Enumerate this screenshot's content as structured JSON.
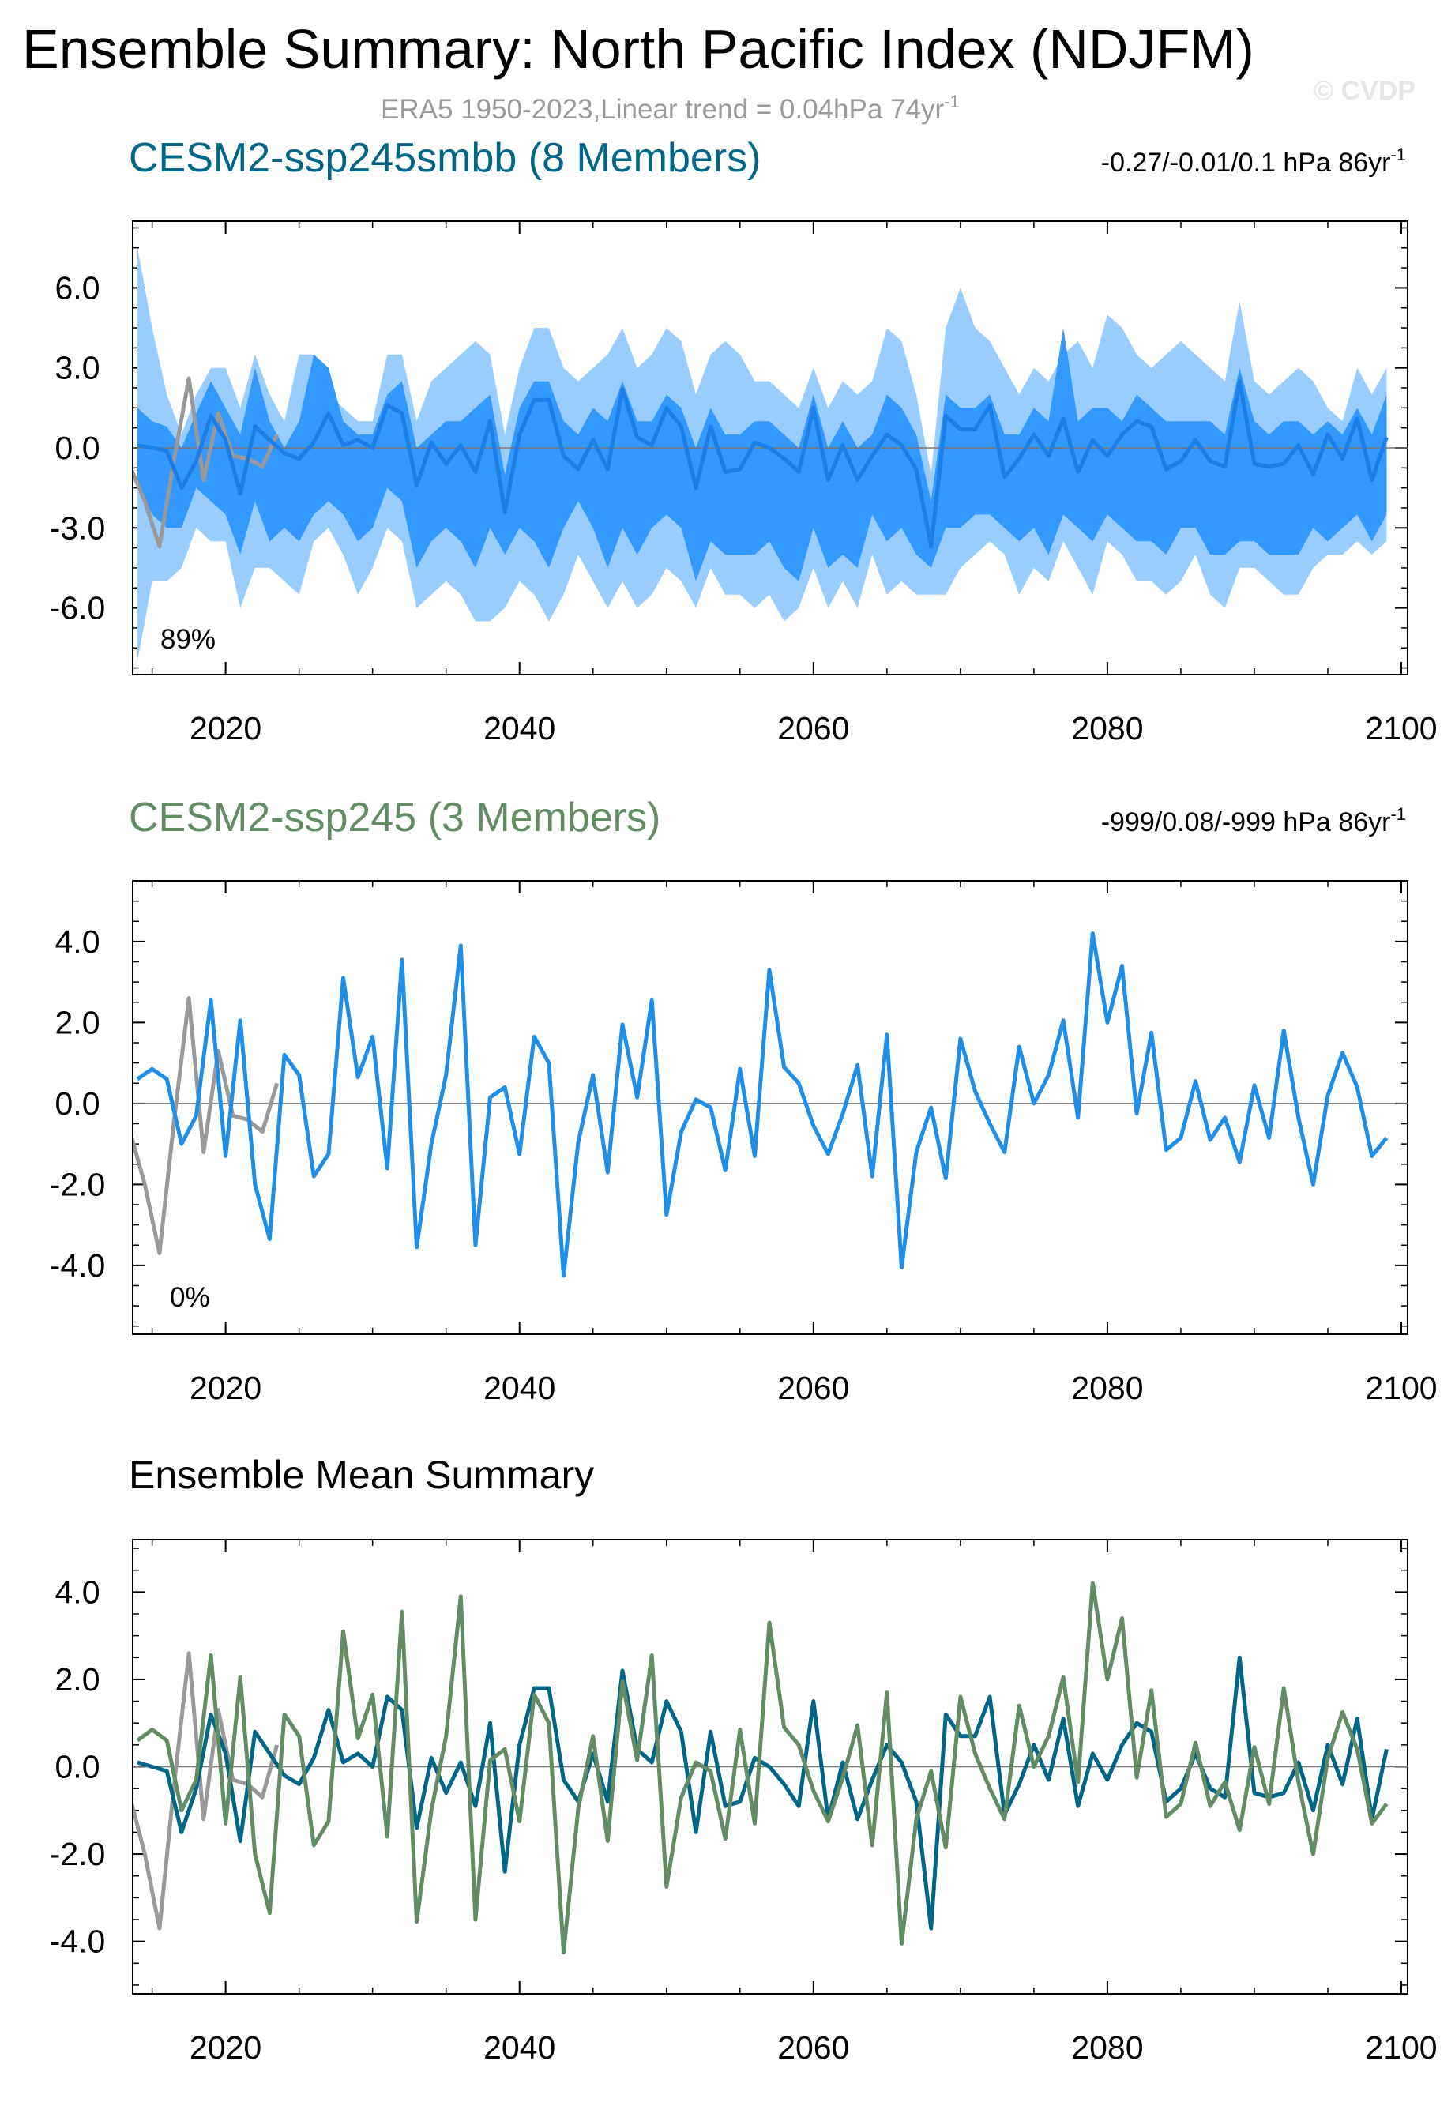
{
  "title": "Ensemble Summary: North Pacific Index (NDJFM)",
  "subtitle": "ERA5 1950-2023,Linear trend = 0.04hPa 74yr",
  "subtitle_sup": "-1",
  "watermark": "© CVDP",
  "colors": {
    "smbb": "#006688",
    "ssp245": "#638c64",
    "obs": "#999999",
    "mean_line": "#1c7ee8",
    "band_outer": "#99ccff",
    "band_inner": "#3399ff",
    "ssp245_line": "#1f8ee8"
  },
  "chart_data": [
    {
      "type": "area",
      "name": "panel-smbb",
      "title": "CESM2-ssp245smbb (8 Members)",
      "trend_text": "-0.27/-0.01/0.1 hPa 86yr",
      "trend_sup": "-1",
      "percent_label": "89%",
      "xlim": [
        2014,
        2100
      ],
      "ylim": [
        -8.5,
        8.5
      ],
      "yticks": [
        6.0,
        3.0,
        0.0,
        -3.0,
        -6.0
      ],
      "ytick_labels": [
        "6.0",
        "3.0",
        "0.0",
        "-3.0",
        "-6.0"
      ],
      "xticks": [
        2020,
        2040,
        2060,
        2080,
        2100
      ],
      "xtick_labels": [
        "2020",
        "2040",
        "2060",
        "2080",
        "2100"
      ],
      "x_start": 2014,
      "ensemble_mean": [
        0.1,
        0.0,
        -0.1,
        -1.5,
        -0.5,
        1.2,
        0.3,
        -1.7,
        0.8,
        0.3,
        -0.2,
        -0.4,
        0.2,
        1.3,
        0.1,
        0.3,
        0.0,
        1.6,
        1.3,
        -1.4,
        0.2,
        -0.6,
        0.1,
        -0.9,
        1.0,
        -2.4,
        0.5,
        1.8,
        1.8,
        -0.3,
        -0.8,
        0.3,
        -0.8,
        2.2,
        0.4,
        0.1,
        1.5,
        0.8,
        -1.5,
        0.8,
        -0.9,
        -0.8,
        0.2,
        0.0,
        -0.4,
        -0.9,
        1.5,
        -1.2,
        0.1,
        -1.2,
        -0.3,
        0.5,
        0.1,
        -0.8,
        -3.7,
        1.2,
        0.7,
        0.7,
        1.6,
        -1.1,
        -0.4,
        0.5,
        -0.3,
        1.1,
        -0.9,
        0.3,
        -0.3,
        0.5,
        1.0,
        0.8,
        -0.8,
        -0.5,
        0.3,
        -0.5,
        -0.7,
        2.5,
        -0.6,
        -0.7,
        -0.6,
        0.1,
        -1.0,
        0.5,
        -0.4,
        1.1,
        -1.2,
        0.4
      ],
      "outer_upper": [
        7.5,
        4.5,
        2.0,
        0.5,
        2.0,
        3.0,
        3.0,
        1.5,
        3.5,
        2.0,
        1.0,
        3.5,
        3.5,
        2.0,
        1.5,
        1.0,
        1.0,
        3.5,
        3.5,
        1.0,
        2.5,
        3.0,
        3.5,
        4.0,
        3.5,
        0.5,
        3.0,
        4.5,
        4.5,
        3.0,
        2.5,
        3.0,
        3.5,
        4.5,
        3.0,
        3.5,
        4.5,
        4.0,
        2.0,
        3.5,
        4.0,
        3.5,
        2.5,
        2.5,
        2.0,
        1.5,
        3.0,
        1.5,
        2.5,
        2.0,
        2.5,
        4.5,
        4.0,
        2.0,
        -1.0,
        4.5,
        6.0,
        4.5,
        4.0,
        3.0,
        2.0,
        3.0,
        2.5,
        3.5,
        4.0,
        3.0,
        5.0,
        4.5,
        3.5,
        3.0,
        3.5,
        4.0,
        3.5,
        3.0,
        2.5,
        5.5,
        2.5,
        2.0,
        2.5,
        3.0,
        2.5,
        1.5,
        1.0,
        3.0,
        2.0,
        3.0
      ],
      "outer_lower": [
        -8.0,
        -5.0,
        -5.0,
        -4.5,
        -3.0,
        -3.5,
        -3.5,
        -6.0,
        -4.5,
        -4.5,
        -5.0,
        -5.5,
        -3.5,
        -3.0,
        -4.0,
        -5.5,
        -4.5,
        -3.0,
        -3.5,
        -6.0,
        -5.5,
        -5.0,
        -5.5,
        -6.5,
        -6.5,
        -6.0,
        -5.0,
        -5.5,
        -6.5,
        -5.5,
        -4.0,
        -5.0,
        -6.0,
        -5.0,
        -6.0,
        -5.5,
        -4.5,
        -5.0,
        -6.0,
        -4.5,
        -5.5,
        -5.5,
        -6.0,
        -5.5,
        -6.5,
        -6.0,
        -4.5,
        -6.0,
        -5.0,
        -6.0,
        -4.0,
        -5.5,
        -5.0,
        -5.5,
        -5.5,
        -5.5,
        -4.5,
        -4.0,
        -3.5,
        -4.0,
        -5.5,
        -4.5,
        -5.0,
        -3.5,
        -4.5,
        -5.5,
        -3.5,
        -4.0,
        -5.0,
        -5.0,
        -5.5,
        -5.0,
        -4.0,
        -5.5,
        -6.0,
        -4.5,
        -4.5,
        -5.0,
        -5.5,
        -5.5,
        -4.5,
        -4.0,
        -4.0,
        -3.5,
        -4.0,
        -3.5
      ],
      "inner_upper": [
        1.5,
        1.0,
        0.8,
        0.0,
        1.3,
        2.5,
        1.5,
        0.5,
        3.0,
        1.0,
        0.0,
        1.0,
        3.5,
        3.0,
        1.0,
        0.5,
        0.5,
        2.0,
        2.5,
        0.0,
        0.5,
        1.0,
        1.0,
        1.5,
        2.0,
        -1.0,
        1.5,
        2.5,
        2.5,
        1.0,
        0.5,
        1.5,
        1.0,
        2.5,
        1.0,
        1.0,
        2.0,
        1.5,
        0.0,
        1.5,
        0.5,
        0.5,
        1.0,
        1.0,
        0.5,
        0.0,
        2.0,
        0.0,
        1.0,
        0.0,
        0.5,
        2.0,
        1.5,
        0.5,
        -2.0,
        2.0,
        1.5,
        1.5,
        2.0,
        0.5,
        0.5,
        1.5,
        1.0,
        4.5,
        1.0,
        1.5,
        1.5,
        1.0,
        2.0,
        1.5,
        1.0,
        1.0,
        1.0,
        1.0,
        0.5,
        3.0,
        1.0,
        0.5,
        1.0,
        1.0,
        0.5,
        1.0,
        0.5,
        1.5,
        0.5,
        2.0
      ],
      "inner_lower": [
        -1.5,
        -2.5,
        -3.0,
        -3.0,
        -1.5,
        -2.0,
        -2.5,
        -4.0,
        -2.0,
        -3.5,
        -3.0,
        -3.5,
        -2.5,
        -2.0,
        -2.5,
        -3.5,
        -3.0,
        -1.5,
        -2.0,
        -4.5,
        -3.5,
        -3.0,
        -3.5,
        -4.5,
        -3.0,
        -4.0,
        -3.0,
        -3.5,
        -4.5,
        -3.0,
        -2.0,
        -3.0,
        -4.5,
        -3.0,
        -4.0,
        -3.0,
        -2.5,
        -3.0,
        -5.0,
        -3.5,
        -4.0,
        -4.0,
        -4.0,
        -3.5,
        -4.5,
        -5.0,
        -3.0,
        -4.5,
        -4.0,
        -4.5,
        -2.5,
        -3.5,
        -3.0,
        -4.0,
        -4.5,
        -3.0,
        -3.0,
        -2.5,
        -2.5,
        -3.0,
        -3.5,
        -3.0,
        -4.0,
        -2.5,
        -3.0,
        -3.5,
        -2.5,
        -3.0,
        -3.5,
        -3.5,
        -4.0,
        -3.0,
        -3.0,
        -4.0,
        -4.0,
        -3.5,
        -3.5,
        -4.0,
        -4.0,
        -4.0,
        -3.0,
        -3.5,
        -3.0,
        -2.5,
        -3.5,
        -2.5
      ]
    },
    {
      "type": "line",
      "name": "panel-ssp245",
      "title": "CESM2-ssp245 (3 Members)",
      "trend_text": "-999/0.08/-999 hPa 86yr",
      "trend_sup": "-1",
      "percent_label": "0%",
      "xlim": [
        2014,
        2100
      ],
      "ylim": [
        -5.7,
        5.5
      ],
      "yticks": [
        4.0,
        2.0,
        0.0,
        -2.0,
        -4.0
      ],
      "ytick_labels": [
        "4.0",
        "2.0",
        "0.0",
        "-2.0",
        "-4.0"
      ],
      "xticks": [
        2020,
        2040,
        2060,
        2080,
        2100
      ],
      "xtick_labels": [
        "2020",
        "2040",
        "2060",
        "2080",
        "2100"
      ],
      "x_start": 2014,
      "values": [
        0.6,
        0.85,
        0.6,
        -1.0,
        -0.3,
        2.55,
        -1.3,
        2.05,
        -2.0,
        -3.35,
        1.2,
        0.7,
        -1.8,
        -1.25,
        3.1,
        0.65,
        1.65,
        -1.6,
        3.55,
        -3.55,
        -1.0,
        0.7,
        3.9,
        -3.5,
        0.15,
        0.4,
        -1.25,
        1.65,
        1.0,
        -4.25,
        -0.95,
        0.7,
        -1.7,
        1.95,
        0.15,
        2.55,
        -2.75,
        -0.7,
        0.1,
        -0.1,
        -1.65,
        0.85,
        -1.3,
        3.3,
        0.9,
        0.5,
        -0.55,
        -1.25,
        -0.25,
        0.95,
        -1.8,
        1.7,
        -4.05,
        -1.2,
        -0.1,
        -1.85,
        1.6,
        0.3,
        -0.5,
        -1.2,
        1.4,
        0.0,
        0.7,
        2.05,
        -0.35,
        4.2,
        2.0,
        3.4,
        -0.25,
        1.75,
        -1.15,
        -0.85,
        0.55,
        -0.9,
        -0.35,
        -1.45,
        0.45,
        -0.85,
        1.8,
        -0.35,
        -2.0,
        0.2,
        1.25,
        0.4,
        -1.3,
        -0.85
      ]
    },
    {
      "type": "line",
      "name": "panel-mean",
      "title": "Ensemble Mean Summary",
      "xlim": [
        2014,
        2100
      ],
      "ylim": [
        -5.2,
        5.2
      ],
      "yticks": [
        4.0,
        2.0,
        0.0,
        -2.0,
        -4.0
      ],
      "ytick_labels": [
        "4.0",
        "2.0",
        "0.0",
        "-2.0",
        "-4.0"
      ],
      "xticks": [
        2020,
        2040,
        2060,
        2080,
        2100
      ],
      "xtick_labels": [
        "2020",
        "2040",
        "2060",
        "2080",
        "2100"
      ],
      "x_start": 2014,
      "series": [
        {
          "name": "CESM2-ssp245smbb",
          "ref": "smbb_mean"
        },
        {
          "name": "CESM2-ssp245",
          "ref": "ssp245"
        }
      ]
    }
  ],
  "observations": {
    "name": "ERA5",
    "x": [
      2013.5,
      2014.5,
      2015.5,
      2016.5,
      2017.5,
      2018.5,
      2019.5,
      2020.5,
      2021.5,
      2022.5,
      2023.5
    ],
    "values": [
      -0.7,
      -2.0,
      -3.7,
      -0.4,
      2.6,
      -1.2,
      1.3,
      -0.3,
      -0.4,
      -0.7,
      0.5
    ]
  }
}
